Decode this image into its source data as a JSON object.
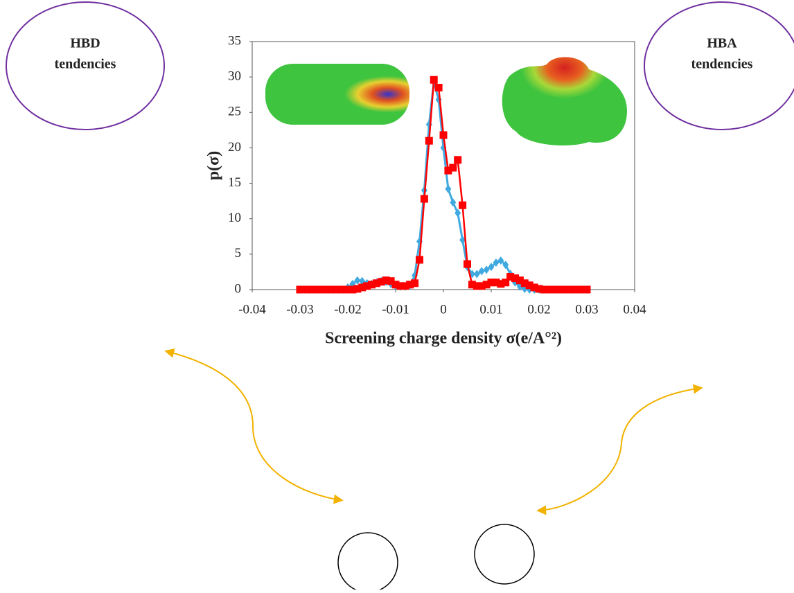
{
  "chart_data": {
    "type": "line",
    "ylabel": "p(σ)",
    "xlabel": "Screening charge density σ(e/A°²)",
    "annotations": [
      {
        "lines": [
          "HBD",
          "tendencies"
        ]
      },
      {
        "lines": [
          "HBA",
          "tendencies"
        ]
      }
    ],
    "x": [
      -0.03,
      -0.029,
      -0.028,
      -0.027,
      -0.026,
      -0.025,
      -0.024,
      -0.023,
      -0.022,
      -0.021,
      -0.02,
      -0.019,
      -0.018,
      -0.017,
      -0.016,
      -0.015,
      -0.014,
      -0.013,
      -0.012,
      -0.011,
      -0.01,
      -0.009,
      -0.008,
      -0.007,
      -0.006,
      -0.005,
      -0.004,
      -0.003,
      -0.002,
      -0.001,
      0,
      0.001,
      0.002,
      0.003,
      0.004,
      0.005,
      0.006,
      0.007,
      0.008,
      0.009,
      0.01,
      0.011,
      0.012,
      0.013,
      0.014,
      0.015,
      0.016,
      0.017,
      0.018,
      0.019,
      0.02,
      0.021,
      0.022,
      0.023,
      0.024,
      0.025,
      0.026,
      0.027,
      0.028,
      0.029,
      0.03
    ],
    "series": [
      {
        "color": "#3fa9e0",
        "marker": "diamond",
        "values": [
          0,
          0,
          0,
          0,
          0,
          0,
          0,
          0,
          0,
          0,
          0.3,
          0.8,
          1.3,
          1.2,
          0.9,
          0.8,
          1.0,
          1.2,
          1.1,
          0.8,
          0.5,
          0.4,
          0.4,
          0.6,
          2.0,
          6.8,
          14,
          23.3,
          29.3,
          26.8,
          20,
          14.2,
          12.3,
          10.8,
          7,
          3.2,
          2.2,
          2.2,
          2.6,
          2.8,
          3.2,
          3.8,
          4.1,
          3.5,
          2.2,
          1.0,
          0.4,
          0.1,
          0,
          0,
          0,
          0,
          0,
          0,
          0,
          0,
          0,
          0,
          0,
          0,
          0
        ]
      },
      {
        "color": "#ff0000",
        "marker": "square",
        "values": [
          0,
          0,
          0,
          0,
          0,
          0,
          0,
          0,
          0,
          0,
          0,
          0,
          0.1,
          0.3,
          0.5,
          0.7,
          0.9,
          1.1,
          1.3,
          1.2,
          0.7,
          0.5,
          0.5,
          0.7,
          0.9,
          4.2,
          12.8,
          21,
          29.6,
          28.5,
          21.8,
          16.8,
          17.2,
          18.3,
          11.9,
          3.6,
          0.7,
          0.5,
          0.5,
          0.7,
          1.0,
          1.0,
          0.8,
          1.0,
          1.8,
          1.6,
          1.3,
          0.9,
          0.6,
          0.3,
          0.1,
          0,
          0,
          0,
          0,
          0,
          0,
          0,
          0,
          0,
          0
        ]
      }
    ],
    "xlim": [
      -0.04,
      0.04
    ],
    "xticks": [
      -0.04,
      -0.03,
      -0.02,
      -0.01,
      0,
      0.01,
      0.02,
      0.03,
      0.04
    ],
    "ylim": [
      0,
      35
    ],
    "yticks": [
      0,
      5,
      10,
      15,
      20,
      25,
      30,
      35
    ]
  }
}
